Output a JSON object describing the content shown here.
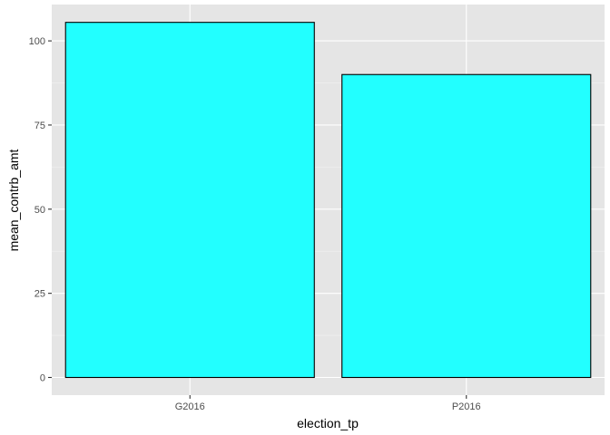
{
  "chart_data": {
    "type": "bar",
    "categories": [
      "G2016",
      "P2016"
    ],
    "values": [
      105.5,
      90.0
    ],
    "title": "",
    "xlabel": "election_tp",
    "ylabel": "mean_contrb_amt",
    "ylim": [
      0,
      110
    ],
    "yticks": [
      0,
      25,
      50,
      75,
      100
    ],
    "grid": true,
    "legend": "none",
    "colors": {
      "panel_background": "#e5e5e5",
      "grid_major": "#ffffff",
      "bar_fill": "#22ffff",
      "bar_outline": "#000000",
      "tick_text": "#4d4d4d"
    }
  }
}
